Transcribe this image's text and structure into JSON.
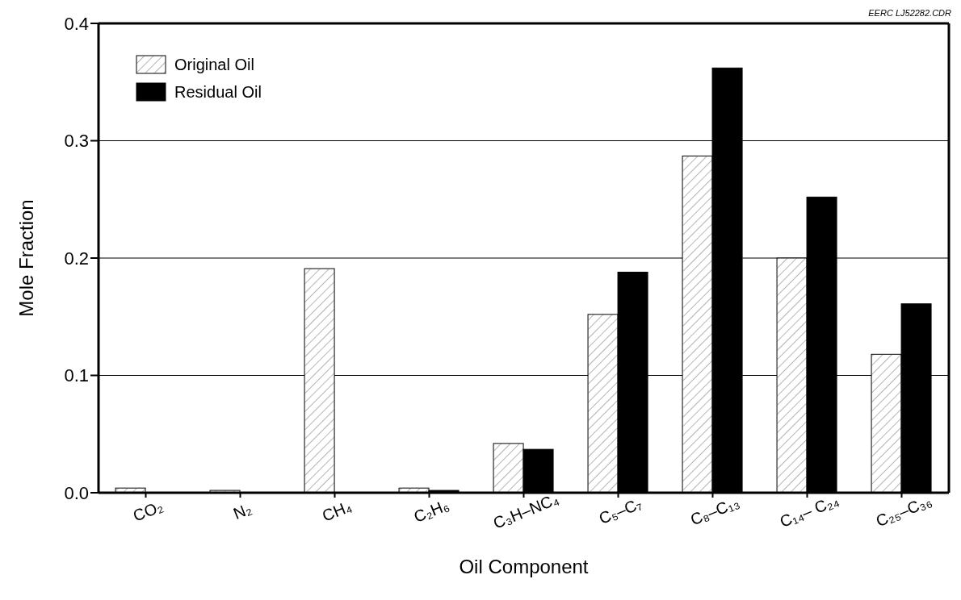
{
  "chart_data": {
    "type": "bar",
    "xlabel": "Oil Component",
    "ylabel": "Mole Fraction",
    "categories": [
      "CO₂",
      "N₂",
      "CH₄",
      "C₂H₆",
      "C₃H–NC₄",
      "C₅–C₇",
      "C₈–C₁₃",
      "C₁₄– C₂₄",
      "C₂₅–C₃₆"
    ],
    "series": [
      {
        "name": "Original Oil",
        "color": "#ffffff",
        "values": [
          0.004,
          0.002,
          0.191,
          0.004,
          0.042,
          0.152,
          0.287,
          0.2,
          0.118
        ]
      },
      {
        "name": "Residual Oil",
        "color": "#000000",
        "values": [
          0,
          0,
          0,
          0.002,
          0.037,
          0.188,
          0.362,
          0.252,
          0.161
        ]
      }
    ],
    "ylim": [
      0,
      0.4
    ],
    "yticks": [
      "0.0",
      0.1,
      0.2,
      0.3,
      0.4
    ],
    "grid": "y",
    "legend": "top left",
    "annotations": [
      "EERC LJ52282.CDR"
    ]
  }
}
